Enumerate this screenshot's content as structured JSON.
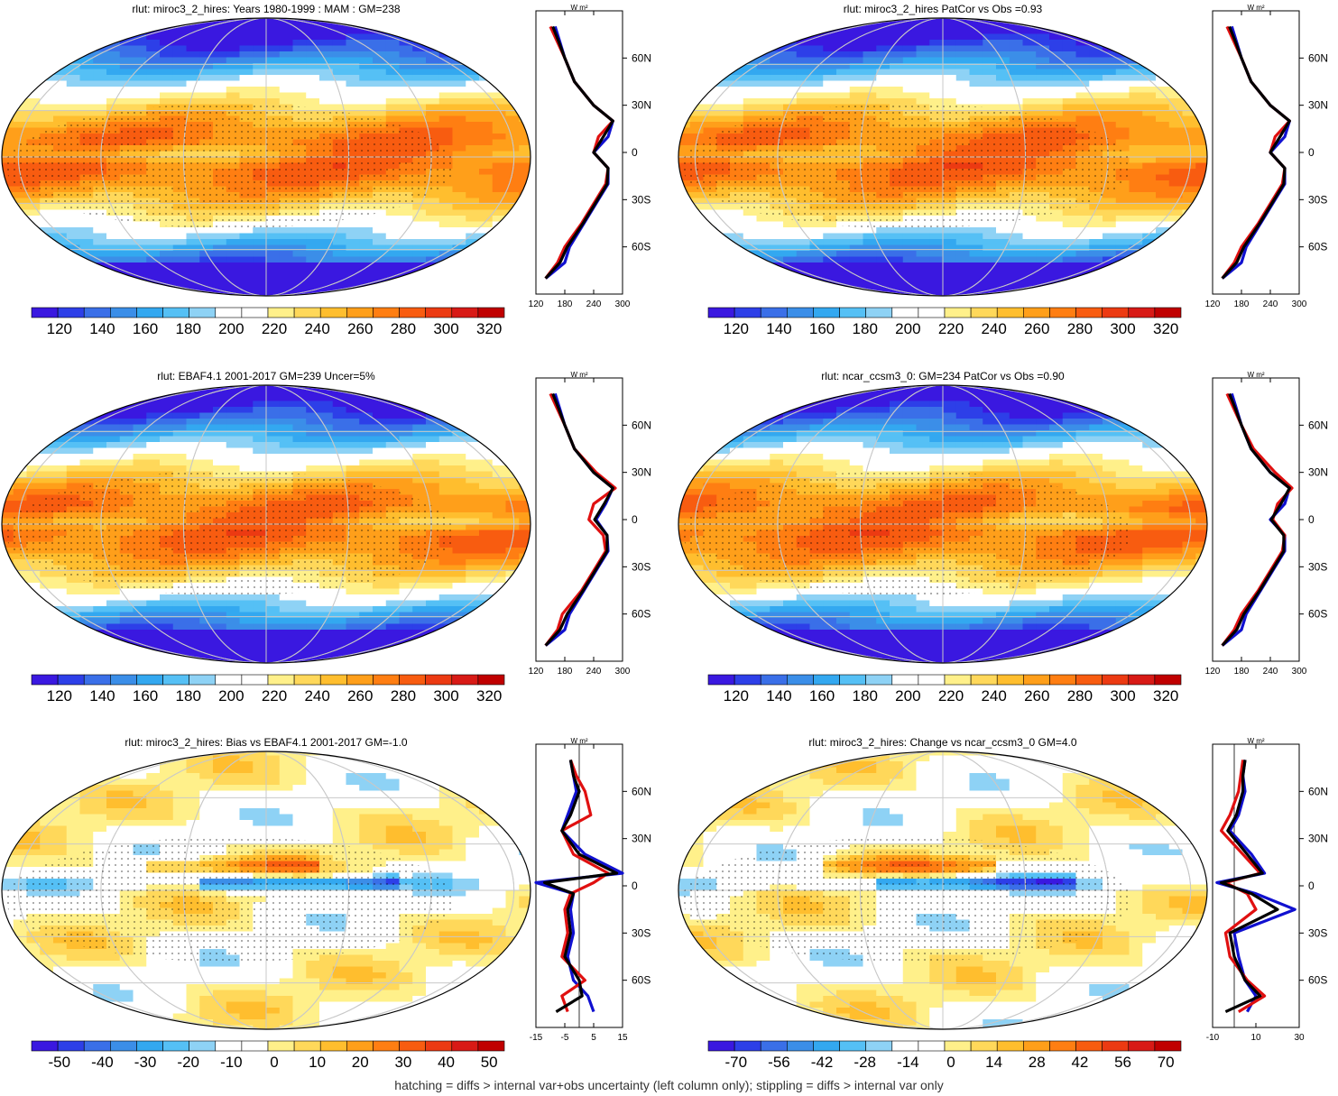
{
  "footnote": "hatching = diffs > internal var+obs uncertainty (left column only); stippling = diffs > internal var only",
  "profile_unit": "W m²",
  "lat_ticks": [
    "60N",
    "30N",
    "0",
    "30S",
    "60S"
  ],
  "chart_data": [
    {
      "type": "heatmap",
      "title": "rlut: miroc3_2_hires: Years 1980-1999 : MAM : GM=238",
      "colorbar_labels": [
        "120",
        "140",
        "160",
        "180",
        "200",
        "220",
        "240",
        "260",
        "280",
        "300",
        "320"
      ],
      "profile": {
        "xticks": [
          "120",
          "180",
          "240",
          "300"
        ],
        "xlim": [
          120,
          300
        ],
        "series": [
          {
            "color": "#1010d0",
            "lat": [
              80,
              70,
              60,
              45,
              30,
              20,
              10,
              0,
              -10,
              -20,
              -30,
              -45,
              -60,
              -70,
              -80
            ],
            "values": [
              160,
              170,
              180,
              200,
              240,
              280,
              270,
              240,
              270,
              270,
              250,
              220,
              190,
              180,
              140
            ]
          },
          {
            "color": "#e01010",
            "lat": [
              80,
              70,
              60,
              45,
              30,
              20,
              10,
              0,
              -10,
              -20,
              -30,
              -45,
              -60,
              -70,
              -80
            ],
            "values": [
              150,
              165,
              180,
              200,
              240,
              280,
              250,
              240,
              270,
              265,
              245,
              215,
              180,
              165,
              140
            ]
          },
          {
            "color": "#000000",
            "lat": [
              80,
              70,
              60,
              45,
              30,
              20,
              10,
              0,
              -10,
              -20,
              -30,
              -45,
              -60,
              -70,
              -80
            ],
            "values": [
              155,
              168,
              180,
              200,
              240,
              280,
              260,
              240,
              270,
              268,
              248,
              218,
              185,
              170,
              140
            ]
          }
        ]
      }
    },
    {
      "type": "heatmap",
      "title": "rlut: miroc3_2_hires PatCor vs Obs =0.93",
      "colorbar_labels": [
        "120",
        "140",
        "160",
        "180",
        "200",
        "220",
        "240",
        "260",
        "280",
        "300",
        "320"
      ],
      "profile": {
        "xticks": [
          "120",
          "180",
          "240",
          "300"
        ],
        "xlim": [
          120,
          300
        ],
        "series": [
          {
            "color": "#1010d0",
            "lat": [
              80,
              70,
              60,
              45,
              30,
              20,
              10,
              0,
              -10,
              -20,
              -30,
              -45,
              -60,
              -70,
              -80
            ],
            "values": [
              160,
              170,
              180,
              200,
              240,
              280,
              270,
              240,
              270,
              270,
              250,
              220,
              190,
              180,
              140
            ]
          },
          {
            "color": "#e01010",
            "lat": [
              80,
              70,
              60,
              45,
              30,
              20,
              10,
              0,
              -10,
              -20,
              -30,
              -45,
              -60,
              -70,
              -80
            ],
            "values": [
              150,
              165,
              180,
              200,
              240,
              280,
              250,
              240,
              270,
              265,
              245,
              215,
              180,
              165,
              140
            ]
          },
          {
            "color": "#000000",
            "lat": [
              80,
              70,
              60,
              45,
              30,
              20,
              10,
              0,
              -10,
              -20,
              -30,
              -45,
              -60,
              -70,
              -80
            ],
            "values": [
              155,
              168,
              180,
              200,
              240,
              280,
              260,
              240,
              270,
              268,
              248,
              218,
              185,
              170,
              140
            ]
          }
        ]
      }
    },
    {
      "type": "heatmap",
      "title": "rlut: EBAF4.1 2001-2017 GM=239 Uncer=5%",
      "colorbar_labels": [
        "120",
        "140",
        "160",
        "180",
        "200",
        "220",
        "240",
        "260",
        "280",
        "300",
        "320"
      ],
      "profile": {
        "xticks": [
          "120",
          "180",
          "240",
          "300"
        ],
        "xlim": [
          120,
          300
        ],
        "series": [
          {
            "color": "#1010d0",
            "lat": [
              80,
              70,
              60,
              45,
              30,
              20,
              10,
              0,
              -10,
              -20,
              -30,
              -45,
              -60,
              -70,
              -80
            ],
            "values": [
              160,
              170,
              180,
              200,
              240,
              280,
              265,
              245,
              268,
              270,
              250,
              220,
              190,
              180,
              140
            ]
          },
          {
            "color": "#e01010",
            "lat": [
              80,
              70,
              60,
              45,
              30,
              20,
              10,
              0,
              -10,
              -20,
              -30,
              -45,
              -60,
              -70,
              -80
            ],
            "values": [
              150,
              165,
              180,
              200,
              245,
              285,
              240,
              230,
              260,
              265,
              245,
              215,
              175,
              165,
              140
            ]
          },
          {
            "color": "#000000",
            "lat": [
              80,
              70,
              60,
              45,
              30,
              20,
              10,
              0,
              -10,
              -20,
              -30,
              -45,
              -60,
              -70,
              -80
            ],
            "values": [
              155,
              168,
              180,
              200,
              240,
              280,
              262,
              242,
              268,
              268,
              248,
              218,
              185,
              170,
              140
            ]
          }
        ]
      }
    },
    {
      "type": "heatmap",
      "title": "rlut: ncar_ccsm3_0: GM=234 PatCor vs Obs =0.90",
      "colorbar_labels": [
        "120",
        "140",
        "160",
        "180",
        "200",
        "220",
        "240",
        "260",
        "280",
        "300",
        "320"
      ],
      "profile": {
        "xticks": [
          "120",
          "180",
          "240",
          "300"
        ],
        "xlim": [
          120,
          300
        ],
        "series": [
          {
            "color": "#1010d0",
            "lat": [
              80,
              70,
              60,
              45,
              30,
              20,
              10,
              0,
              -10,
              -20,
              -30,
              -45,
              -60,
              -70,
              -80
            ],
            "values": [
              160,
              170,
              180,
              200,
              240,
              280,
              270,
              240,
              270,
              270,
              250,
              220,
              190,
              180,
              140
            ]
          },
          {
            "color": "#e01010",
            "lat": [
              80,
              70,
              60,
              45,
              30,
              20,
              10,
              0,
              -10,
              -20,
              -30,
              -45,
              -60,
              -70,
              -80
            ],
            "values": [
              150,
              165,
              180,
              205,
              250,
              285,
              255,
              245,
              270,
              265,
              245,
              215,
              180,
              165,
              140
            ]
          },
          {
            "color": "#000000",
            "lat": [
              80,
              70,
              60,
              45,
              30,
              20,
              10,
              0,
              -10,
              -20,
              -30,
              -45,
              -60,
              -70,
              -80
            ],
            "values": [
              155,
              168,
              180,
              200,
              240,
              280,
              262,
              242,
              268,
              268,
              248,
              218,
              185,
              170,
              140
            ]
          }
        ]
      }
    },
    {
      "type": "heatmap",
      "title": "rlut: miroc3_2_hires: Bias vs EBAF4.1 2001-2017 GM=-1.0",
      "colorbar_labels": [
        "-50",
        "-40",
        "-30",
        "-20",
        "-10",
        "0",
        "10",
        "20",
        "30",
        "40",
        "50"
      ],
      "profile": {
        "xticks": [
          "-15",
          "-5",
          "5",
          "15"
        ],
        "xlim": [
          -15,
          15
        ],
        "series": [
          {
            "color": "#1010d0",
            "lat": [
              80,
              70,
              60,
              45,
              35,
              20,
              8,
              2,
              -5,
              -15,
              -30,
              -45,
              -60,
              -70,
              -80
            ],
            "values": [
              -3,
              -2,
              -1,
              -4,
              -6,
              2,
              15,
              -15,
              -2,
              -3,
              -2,
              -4,
              -2,
              3,
              5
            ]
          },
          {
            "color": "#e01010",
            "lat": [
              80,
              70,
              60,
              45,
              35,
              20,
              8,
              2,
              -5,
              -15,
              -30,
              -45,
              -60,
              -70,
              -80
            ],
            "values": [
              -3,
              -1,
              2,
              4,
              -6,
              -2,
              10,
              5,
              -3,
              -5,
              -4,
              -6,
              2,
              -6,
              -4
            ]
          },
          {
            "color": "#000000",
            "lat": [
              80,
              70,
              60,
              45,
              35,
              20,
              8,
              2,
              -5,
              -15,
              -30,
              -45,
              -60,
              -70,
              -80
            ],
            "values": [
              -3,
              -2,
              0,
              -3,
              -6,
              0,
              13,
              -12,
              -2,
              -4,
              -3,
              -5,
              0,
              1,
              -8
            ]
          }
        ]
      }
    },
    {
      "type": "heatmap",
      "title": "rlut: miroc3_2_hires: Change vs ncar_ccsm3_0 GM=4.0",
      "colorbar_labels": [
        "-70",
        "-56",
        "-42",
        "-28",
        "-14",
        "0",
        "14",
        "28",
        "42",
        "56",
        "70"
      ],
      "profile": {
        "xticks": [
          "-10",
          "10",
          "30"
        ],
        "xlim": [
          -10,
          30
        ],
        "series": [
          {
            "color": "#1010d0",
            "lat": [
              80,
              70,
              60,
              45,
              35,
              20,
              8,
              2,
              -5,
              -15,
              -30,
              -45,
              -60,
              -70,
              -80
            ],
            "values": [
              5,
              4,
              5,
              2,
              -2,
              8,
              14,
              -8,
              10,
              28,
              0,
              2,
              5,
              10,
              6
            ]
          },
          {
            "color": "#e01010",
            "lat": [
              80,
              70,
              60,
              45,
              35,
              20,
              8,
              2,
              -5,
              -15,
              -30,
              -45,
              -60,
              -70,
              -80
            ],
            "values": [
              4,
              3,
              2,
              -2,
              -6,
              4,
              12,
              -4,
              6,
              10,
              -4,
              -2,
              6,
              14,
              2
            ]
          },
          {
            "color": "#000000",
            "lat": [
              80,
              70,
              60,
              45,
              35,
              20,
              8,
              2,
              -5,
              -15,
              -30,
              -45,
              -60,
              -70,
              -80
            ],
            "values": [
              5,
              4,
              4,
              1,
              -3,
              6,
              13,
              -6,
              8,
              20,
              -2,
              0,
              5,
              12,
              -4
            ]
          }
        ]
      }
    }
  ],
  "colors": {
    "abs_scale": [
      "#3a18e0",
      "#2d3fe8",
      "#3a6fe8",
      "#3b8ee8",
      "#33a8f0",
      "#55c0f5",
      "#8ed2f5",
      "#ffffff",
      "#ffffff",
      "#fff08a",
      "#ffd85a",
      "#ffbe2e",
      "#ff9f1a",
      "#ff7e12",
      "#f85c10",
      "#ec3a12",
      "#d81a16",
      "#c00000"
    ],
    "diff_scale": [
      "#3a18e0",
      "#2d3fe8",
      "#3a6fe8",
      "#3b8ee8",
      "#33a8f0",
      "#55c0f5",
      "#8ed2f5",
      "#ffffff",
      "#ffffff",
      "#fff08a",
      "#ffd85a",
      "#ffbe2e",
      "#ff9f1a",
      "#ff7e12",
      "#f85c10",
      "#ec3a12",
      "#d81a16",
      "#c00000"
    ]
  }
}
